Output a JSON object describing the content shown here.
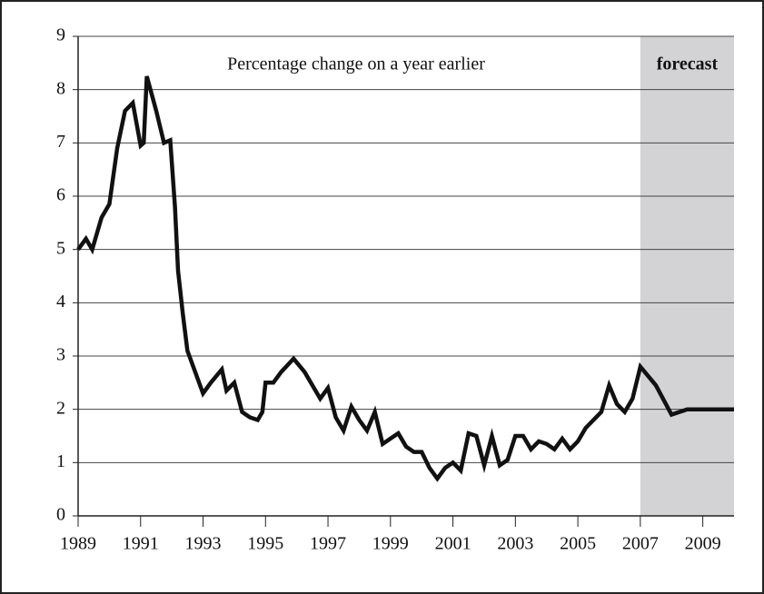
{
  "chart_data": {
    "type": "line",
    "title": "Percentage change on a year earlier",
    "annotation": "forecast",
    "forecast_range": [
      2007,
      2010
    ],
    "x": [
      1989.0,
      1989.25,
      1989.45,
      1989.75,
      1990.0,
      1990.25,
      1990.5,
      1990.75,
      1991.0,
      1991.1,
      1991.2,
      1991.5,
      1991.75,
      1991.95,
      1992.1,
      1992.2,
      1992.35,
      1992.5,
      1992.75,
      1993.0,
      1993.25,
      1993.6,
      1993.75,
      1994.0,
      1994.25,
      1994.5,
      1994.75,
      1994.9,
      1995.0,
      1995.25,
      1995.5,
      1995.9,
      1996.25,
      1996.5,
      1996.75,
      1997.0,
      1997.25,
      1997.5,
      1997.75,
      1998.0,
      1998.25,
      1998.5,
      1998.75,
      1999.0,
      1999.25,
      1999.5,
      1999.75,
      2000.0,
      2000.25,
      2000.5,
      2000.75,
      2001.0,
      2001.25,
      2001.5,
      2001.75,
      2002.0,
      2002.25,
      2002.5,
      2002.75,
      2003.0,
      2003.25,
      2003.5,
      2003.75,
      2004.0,
      2004.25,
      2004.5,
      2004.75,
      2005.0,
      2005.25,
      2005.75,
      2006.0,
      2006.25,
      2006.5,
      2006.75,
      2007.0,
      2007.5,
      2008.0,
      2008.5,
      2009.0,
      2009.5,
      2010.0
    ],
    "values": [
      5.0,
      5.2,
      5.0,
      5.6,
      5.85,
      6.9,
      7.6,
      7.75,
      6.95,
      7.0,
      8.25,
      7.6,
      7.0,
      7.05,
      5.8,
      4.6,
      3.8,
      3.1,
      2.7,
      2.3,
      2.5,
      2.75,
      2.35,
      2.5,
      1.95,
      1.85,
      1.8,
      1.95,
      2.5,
      2.5,
      2.7,
      2.95,
      2.7,
      2.45,
      2.2,
      2.4,
      1.85,
      1.6,
      2.05,
      1.8,
      1.6,
      1.95,
      1.35,
      1.45,
      1.55,
      1.3,
      1.2,
      1.2,
      0.9,
      0.7,
      0.9,
      1.0,
      0.85,
      1.55,
      1.5,
      0.95,
      1.5,
      0.95,
      1.05,
      1.5,
      1.5,
      1.25,
      1.4,
      1.35,
      1.25,
      1.45,
      1.25,
      1.4,
      1.65,
      1.95,
      2.45,
      2.1,
      1.95,
      2.2,
      2.8,
      2.45,
      1.9,
      2.0,
      2.0,
      2.0,
      2.0
    ],
    "color": "#111111",
    "xlim": [
      1989,
      2010
    ],
    "xticks": [
      1989,
      1991,
      1993,
      1995,
      1997,
      1999,
      2001,
      2003,
      2005,
      2007,
      2009
    ],
    "ylim": [
      0,
      9
    ],
    "yticks": [
      0,
      1,
      2,
      3,
      4,
      5,
      6,
      7,
      8,
      9
    ],
    "grid": true
  }
}
